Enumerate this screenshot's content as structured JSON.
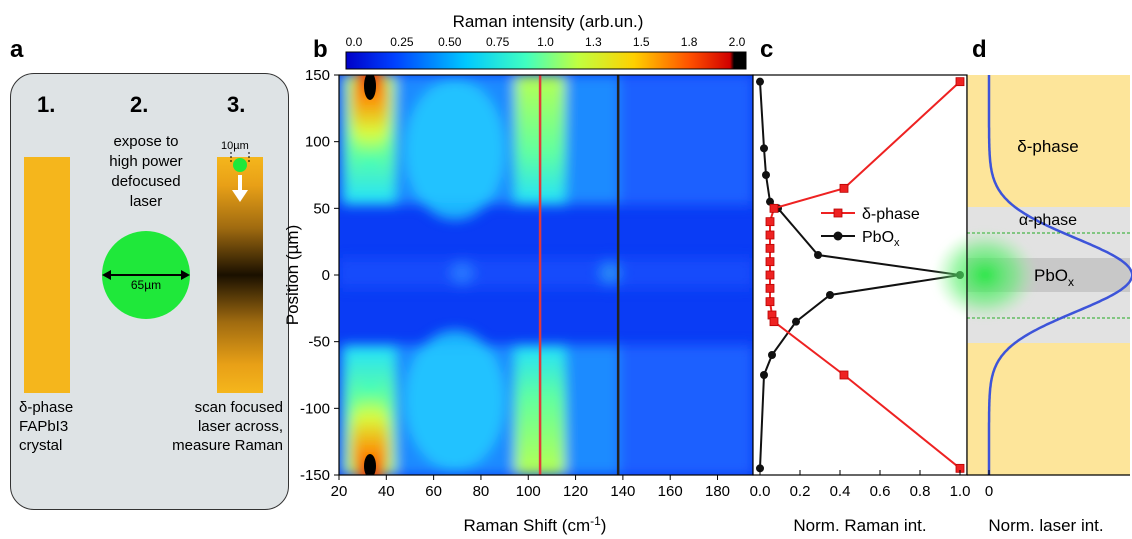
{
  "panel_labels": {
    "a": "a",
    "b": "b",
    "c": "c",
    "d": "d"
  },
  "panel_a": {
    "steps": [
      "1.",
      "2.",
      "3."
    ],
    "step2_text": [
      "expose to",
      "high power",
      "defocused",
      "laser"
    ],
    "beam_size": "65µm",
    "focus_size": "10µm",
    "crystal_text": [
      "δ-phase",
      "FAPbI3",
      "crystal"
    ],
    "scan_text": [
      "scan focused",
      "laser across,",
      "measure Raman"
    ],
    "colors": {
      "crystal": "#f5b61c",
      "laser": "#1fe83a",
      "box": "#dee3e5"
    }
  },
  "colorbar": {
    "title": "Raman intensity (arb.un.)",
    "ticks": [
      "0.0",
      "0.25",
      "0.50",
      "0.75",
      "1.0",
      "1.3",
      "1.5",
      "1.8",
      "2.0"
    ]
  },
  "panel_b": {
    "xlabel": "Raman Shift (cm",
    "xlabel_sup": "-1",
    "xlabel_end": ")",
    "ylabel": "Position (µm)",
    "xticks": [
      "20",
      "40",
      "60",
      "80",
      "100",
      "120",
      "140",
      "160",
      "180"
    ],
    "yticks": [
      "150",
      "100",
      "50",
      "0",
      "-50",
      "-100",
      "-150"
    ]
  },
  "panel_c": {
    "xlabel": "Norm. Raman int.",
    "xticks": [
      "0.0",
      "0.2",
      "0.4",
      "0.6",
      "0.8",
      "1.0"
    ],
    "legend_delta": "δ-phase",
    "legend_pbo": "PbO",
    "legend_pbo_sub": "x"
  },
  "panel_d": {
    "xlabel": "Norm. laser int.",
    "xtick0": "0",
    "delta_label": "δ-phase",
    "alpha_label": "α-phase",
    "pbo_label": "PbO",
    "pbo_sub": "x",
    "colors": {
      "delta": "#fde59a",
      "alpha": "#e2e2e2",
      "pbo": "#c8c8c8",
      "curve": "#3d54d9"
    }
  },
  "chart_data": [
    {
      "type": "heatmap",
      "xlabel": "Raman Shift (cm-1)",
      "ylabel": "Position (µm)",
      "xlim": [
        20,
        195
      ],
      "ylim": [
        -150,
        150
      ],
      "colorbar_label": "Raman intensity (arb.un.)",
      "colorbar_range": [
        0,
        2.0
      ],
      "features": [
        {
          "x": 34,
          "y_range": [
            55,
            150
          ],
          "level": "high"
        },
        {
          "x": 34,
          "y_range": [
            -150,
            -35
          ],
          "level": "high"
        },
        {
          "x": 105,
          "y_range": [
            55,
            150
          ],
          "level": "medium"
        },
        {
          "x": 105,
          "y_range": [
            -150,
            -35
          ],
          "level": "medium"
        },
        {
          "x": 138,
          "y_range": [
            -12,
            12
          ],
          "level": "low-medium"
        }
      ],
      "marker_lines": [
        {
          "x": 105,
          "color": "#e03a3a"
        },
        {
          "x": 138,
          "color": "#222222"
        }
      ]
    },
    {
      "type": "line",
      "xlabel": "Norm. Raman int.",
      "xlim": [
        0,
        1.0
      ],
      "ylim": [
        -150,
        150
      ],
      "series": [
        {
          "name": "δ-phase",
          "color": "#ee2222",
          "points": [
            [
              1.0,
              145
            ],
            [
              0.42,
              65
            ],
            [
              0.07,
              50
            ],
            [
              0.05,
              40
            ],
            [
              0.05,
              30
            ],
            [
              0.05,
              20
            ],
            [
              0.05,
              10
            ],
            [
              0.05,
              0
            ],
            [
              0.05,
              -10
            ],
            [
              0.05,
              -20
            ],
            [
              0.06,
              -30
            ],
            [
              0.07,
              -35
            ],
            [
              0.42,
              -75
            ],
            [
              1.0,
              -145
            ]
          ]
        },
        {
          "name": "PbOx",
          "color": "#111111",
          "points": [
            [
              0.0,
              145
            ],
            [
              0.02,
              95
            ],
            [
              0.03,
              75
            ],
            [
              0.05,
              55
            ],
            [
              0.09,
              50
            ],
            [
              0.29,
              15
            ],
            [
              1.0,
              0
            ],
            [
              0.35,
              -15
            ],
            [
              0.18,
              -35
            ],
            [
              0.06,
              -60
            ],
            [
              0.02,
              -75
            ],
            [
              0.0,
              -145
            ]
          ]
        }
      ]
    },
    {
      "type": "line",
      "xlabel": "Norm. laser int.",
      "ylim": [
        -150,
        150
      ],
      "regions": [
        {
          "name": "δ-phase",
          "y_range": [
            50,
            150
          ]
        },
        {
          "name": "α-phase",
          "y_range": [
            32,
            50
          ]
        },
        {
          "name": "α-phase",
          "y_range": [
            -50,
            -32
          ]
        },
        {
          "name": "PbOx",
          "y_range": [
            -12,
            12
          ]
        }
      ],
      "series": [
        {
          "name": "laser profile",
          "shape": "gaussian",
          "center": 0,
          "fwhm": 65
        }
      ]
    }
  ]
}
